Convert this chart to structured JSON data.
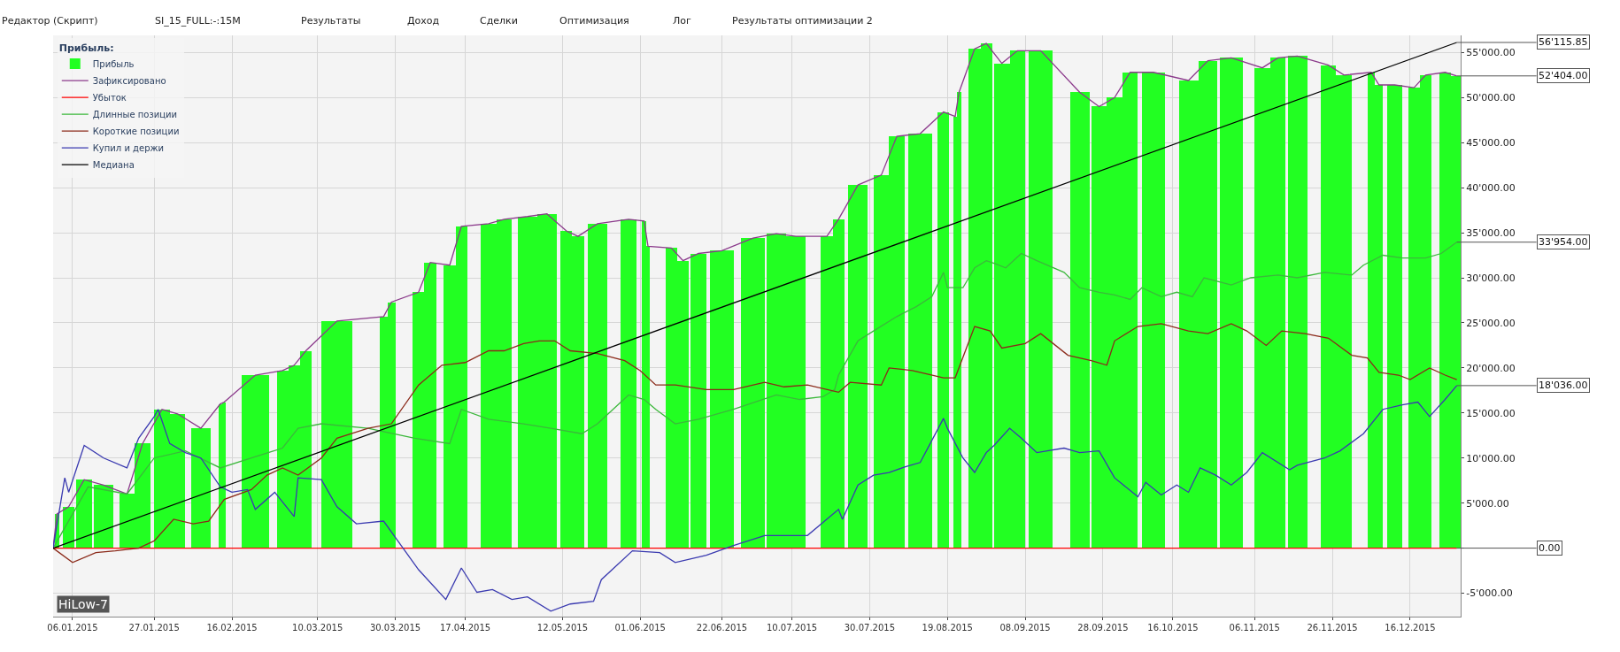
{
  "chart_data": {
    "type": "line",
    "legend_title": "Прибыль:",
    "legend": "top left",
    "grid": true,
    "x": [
      "2015-01-01",
      "2015-12-28"
    ],
    "xlim": [
      "2015-01-01",
      "2015-12-29"
    ],
    "xticks": [
      {
        "value": "2015-01-06",
        "label": "06.01.2015"
      },
      {
        "value": "2015-01-27",
        "label": "27.01.2015"
      },
      {
        "value": "2015-02-16",
        "label": "16.02.2015"
      },
      {
        "value": "2015-03-10",
        "label": "10.03.2015"
      },
      {
        "value": "2015-03-30",
        "label": "30.03.2015"
      },
      {
        "value": "2015-04-17",
        "label": "17.04.2015"
      },
      {
        "value": "2015-05-12",
        "label": "12.05.2015"
      },
      {
        "value": "2015-06-01",
        "label": "01.06.2015"
      },
      {
        "value": "2015-06-22",
        "label": "22.06.2015"
      },
      {
        "value": "2015-07-10",
        "label": "10.07.2015"
      },
      {
        "value": "2015-07-30",
        "label": "30.07.2015"
      },
      {
        "value": "2015-08-19",
        "label": "19.08.2015"
      },
      {
        "value": "2015-09-08",
        "label": "08.09.2015"
      },
      {
        "value": "2015-09-28",
        "label": "28.09.2015"
      },
      {
        "value": "2015-10-16",
        "label": "16.10.2015"
      },
      {
        "value": "2015-11-06",
        "label": "06.11.2015"
      },
      {
        "value": "2015-11-26",
        "label": "26.11.2015"
      },
      {
        "value": "2015-12-16",
        "label": "16.12.2015"
      }
    ],
    "ylim": [
      -7600,
      56900
    ],
    "yticks": [
      {
        "value": -5000,
        "label": "-5'000.00"
      },
      {
        "value": 0,
        "label": null
      },
      {
        "value": 5000,
        "label": "5'000.00"
      },
      {
        "value": 10000,
        "label": "10'000.00"
      },
      {
        "value": 15000,
        "label": "15'000.00"
      },
      {
        "value": 20000,
        "label": "20'000.00"
      },
      {
        "value": 25000,
        "label": "25'000.00"
      },
      {
        "value": 30000,
        "label": "30'000.00"
      },
      {
        "value": 35000,
        "label": "35'000.00"
      },
      {
        "value": 40000,
        "label": "40'000.00"
      },
      {
        "value": 45000,
        "label": "45'000.00"
      },
      {
        "value": 50000,
        "label": "50'000.00"
      },
      {
        "value": 55000,
        "label": "55'000.00"
      }
    ],
    "series": [
      {
        "name": "Прибыль",
        "type": "bar",
        "color": "#22ff22",
        "x": [
          "2015-01-01",
          "2015-01-02",
          "2015-01-05",
          "2015-01-09",
          "2015-01-14",
          "2015-01-20",
          "2015-01-24",
          "2015-01-29",
          "2015-02-02",
          "2015-02-08",
          "2015-02-13",
          "2015-02-14",
          "2015-02-22",
          "2015-03-01",
          "2015-03-04",
          "2015-03-07",
          "2015-03-15",
          "2015-03-27",
          "2015-03-29",
          "2015-04-05",
          "2015-04-08",
          "2015-04-13",
          "2015-04-16",
          "2015-04-23",
          "2015-04-27",
          "2015-05-03",
          "2015-05-08",
          "2015-05-13",
          "2015-05-16",
          "2015-05-21",
          "2015-05-29",
          "2015-06-02",
          "2015-06-03",
          "2015-06-09",
          "2015-06-12",
          "2015-06-16",
          "2015-06-22",
          "2015-06-30",
          "2015-07-06",
          "2015-07-11",
          "2015-07-19",
          "2015-07-22",
          "2015-07-27",
          "2015-08-02",
          "2015-08-06",
          "2015-08-12",
          "2015-08-18",
          "2015-08-21",
          "2015-08-22",
          "2015-08-26",
          "2015-08-29",
          "2015-09-02",
          "2015-09-06",
          "2015-09-12",
          "2015-09-22",
          "2015-09-27",
          "2015-10-01",
          "2015-10-05",
          "2015-10-11",
          "2015-10-20",
          "2015-10-25",
          "2015-10-31",
          "2015-11-08",
          "2015-11-12",
          "2015-11-17",
          "2015-11-25",
          "2015-11-29",
          "2015-12-06",
          "2015-12-08",
          "2015-12-12",
          "2015-12-17",
          "2015-12-20",
          "2015-12-25",
          "2015-12-28"
        ],
        "values": [
          0,
          3800,
          4600,
          7600,
          7000,
          6000,
          11600,
          15400,
          14900,
          13300,
          16000,
          16200,
          19200,
          19700,
          20300,
          21900,
          25200,
          25700,
          27300,
          28400,
          31700,
          31400,
          35700,
          36000,
          36500,
          36800,
          37100,
          35200,
          34600,
          36000,
          36500,
          36300,
          33500,
          33300,
          31900,
          32700,
          33000,
          34400,
          34900,
          34600,
          34600,
          36500,
          40300,
          41400,
          45700,
          46000,
          48400,
          47900,
          50600,
          55400,
          56000,
          53800,
          55200,
          55200,
          50600,
          49000,
          50000,
          52800,
          52800,
          51900,
          54100,
          54400,
          53300,
          54400,
          54600,
          53600,
          52500,
          52800,
          51400,
          51400,
          51100,
          52500,
          52800,
          52404
        ]
      },
      {
        "name": "Зафиксировано",
        "color": "#8b3a8b",
        "x": [
          "2015-01-01",
          "2015-01-02",
          "2015-01-05",
          "2015-01-09",
          "2015-01-14",
          "2015-01-20",
          "2015-01-24",
          "2015-01-29",
          "2015-02-02",
          "2015-02-08",
          "2015-02-13",
          "2015-02-14",
          "2015-02-22",
          "2015-03-01",
          "2015-03-04",
          "2015-03-07",
          "2015-03-15",
          "2015-03-27",
          "2015-03-29",
          "2015-04-05",
          "2015-04-08",
          "2015-04-13",
          "2015-04-16",
          "2015-04-23",
          "2015-04-27",
          "2015-05-03",
          "2015-05-08",
          "2015-05-13",
          "2015-05-16",
          "2015-05-21",
          "2015-05-29",
          "2015-06-02",
          "2015-06-03",
          "2015-06-09",
          "2015-06-12",
          "2015-06-16",
          "2015-06-22",
          "2015-06-30",
          "2015-07-06",
          "2015-07-11",
          "2015-07-19",
          "2015-07-22",
          "2015-07-27",
          "2015-08-02",
          "2015-08-06",
          "2015-08-12",
          "2015-08-18",
          "2015-08-21",
          "2015-08-22",
          "2015-08-26",
          "2015-08-29",
          "2015-09-02",
          "2015-09-06",
          "2015-09-12",
          "2015-09-22",
          "2015-09-27",
          "2015-10-01",
          "2015-10-05",
          "2015-10-11",
          "2015-10-20",
          "2015-10-25",
          "2015-10-31",
          "2015-11-08",
          "2015-11-12",
          "2015-11-17",
          "2015-11-25",
          "2015-11-29",
          "2015-12-06",
          "2015-12-08",
          "2015-12-12",
          "2015-12-17",
          "2015-12-20",
          "2015-12-25",
          "2015-12-28"
        ],
        "values": [
          0,
          3800,
          4600,
          7600,
          7000,
          6000,
          11600,
          15400,
          14900,
          13300,
          16000,
          16200,
          19200,
          19700,
          20300,
          21900,
          25200,
          25700,
          27300,
          28400,
          31700,
          31400,
          35700,
          36000,
          36500,
          36800,
          37100,
          35200,
          34600,
          36000,
          36500,
          36300,
          33500,
          33300,
          31900,
          32700,
          33000,
          34400,
          34900,
          34600,
          34600,
          36500,
          40300,
          41400,
          45700,
          46000,
          48400,
          47900,
          50600,
          55400,
          56000,
          53800,
          55200,
          55200,
          50600,
          49000,
          50000,
          52800,
          52800,
          51900,
          54100,
          54400,
          53300,
          54400,
          54600,
          53600,
          52500,
          52800,
          51400,
          51400,
          51100,
          52500,
          52800,
          52404
        ]
      },
      {
        "name": "Убыток",
        "color": "#ff0000",
        "values": [
          0,
          0
        ]
      },
      {
        "name": "Длинные позиции",
        "color": "#3cb83c",
        "x": [
          "2015-01-01",
          "2015-01-10",
          "2015-01-20",
          "2015-01-27",
          "2015-02-04",
          "2015-02-13",
          "2015-02-21",
          "2015-03-01",
          "2015-03-05",
          "2015-03-11",
          "2015-03-23",
          "2015-04-04",
          "2015-04-13",
          "2015-04-16",
          "2015-04-23",
          "2015-05-02",
          "2015-05-09",
          "2015-05-17",
          "2015-05-21",
          "2015-05-29",
          "2015-06-02",
          "2015-06-05",
          "2015-06-10",
          "2015-06-16",
          "2015-06-25",
          "2015-07-06",
          "2015-07-12",
          "2015-07-18",
          "2015-07-21",
          "2015-07-22",
          "2015-07-27",
          "2015-07-31",
          "2015-08-06",
          "2015-08-11",
          "2015-08-15",
          "2015-08-18",
          "2015-08-19",
          "2015-08-23",
          "2015-08-26",
          "2015-08-29",
          "2015-08-31",
          "2015-09-03",
          "2015-09-07",
          "2015-09-11",
          "2015-09-18",
          "2015-09-22",
          "2015-09-27",
          "2015-10-01",
          "2015-10-05",
          "2015-10-08",
          "2015-10-13",
          "2015-10-17",
          "2015-10-21",
          "2015-10-24",
          "2015-10-31",
          "2015-11-05",
          "2015-11-12",
          "2015-11-17",
          "2015-11-24",
          "2015-12-01",
          "2015-12-04",
          "2015-12-09",
          "2015-12-14",
          "2015-12-20",
          "2015-12-24",
          "2015-12-28"
        ],
        "values": [
          0,
          6800,
          6000,
          10000,
          10800,
          8900,
          10000,
          11100,
          13300,
          13800,
          13300,
          12200,
          11600,
          15400,
          14300,
          13800,
          13300,
          12700,
          13800,
          17000,
          16500,
          15400,
          13800,
          14300,
          15400,
          17000,
          16500,
          16800,
          17600,
          19200,
          23000,
          24100,
          25700,
          26800,
          27900,
          30600,
          28900,
          28900,
          31100,
          31900,
          31600,
          31100,
          32700,
          31900,
          30600,
          28900,
          28400,
          28100,
          27600,
          28900,
          27900,
          28400,
          27900,
          30000,
          29200,
          30000,
          30300,
          30000,
          30600,
          30300,
          31400,
          32500,
          32200,
          32200,
          32700,
          33954
        ]
      },
      {
        "name": "Короткие позиции",
        "color": "#8b2a1a",
        "x": [
          "2015-01-01",
          "2015-01-06",
          "2015-01-12",
          "2015-01-17",
          "2015-01-23",
          "2015-01-27",
          "2015-02-01",
          "2015-02-06",
          "2015-02-10",
          "2015-02-14",
          "2015-02-21",
          "2015-02-25",
          "2015-03-01",
          "2015-03-05",
          "2015-03-11",
          "2015-03-15",
          "2015-03-23",
          "2015-03-29",
          "2015-04-05",
          "2015-04-11",
          "2015-04-17",
          "2015-04-23",
          "2015-04-27",
          "2015-05-02",
          "2015-05-06",
          "2015-05-10",
          "2015-05-14",
          "2015-05-21",
          "2015-05-28",
          "2015-06-01",
          "2015-06-05",
          "2015-06-10",
          "2015-06-18",
          "2015-06-25",
          "2015-07-03",
          "2015-07-08",
          "2015-07-14",
          "2015-07-22",
          "2015-07-25",
          "2015-08-02",
          "2015-08-04",
          "2015-08-10",
          "2015-08-18",
          "2015-08-21",
          "2015-08-26",
          "2015-08-30",
          "2015-09-02",
          "2015-09-08",
          "2015-09-12",
          "2015-09-19",
          "2015-09-25",
          "2015-09-29",
          "2015-10-01",
          "2015-10-07",
          "2015-10-13",
          "2015-10-20",
          "2015-10-25",
          "2015-10-31",
          "2015-11-04",
          "2015-11-09",
          "2015-11-13",
          "2015-11-19",
          "2015-11-25",
          "2015-12-01",
          "2015-12-05",
          "2015-12-08",
          "2015-12-13",
          "2015-12-16",
          "2015-12-21",
          "2015-12-25",
          "2015-12-28"
        ],
        "values": [
          0,
          -1600,
          -500,
          -300,
          0,
          800,
          3200,
          2700,
          3000,
          5400,
          6500,
          8100,
          8900,
          8100,
          10000,
          12200,
          13300,
          13800,
          18100,
          20300,
          20600,
          21900,
          21900,
          22700,
          23000,
          23000,
          21900,
          21600,
          20800,
          19700,
          18100,
          18100,
          17600,
          17600,
          18400,
          17900,
          18100,
          17300,
          18400,
          18100,
          20000,
          19700,
          18900,
          18900,
          24600,
          24100,
          22200,
          22700,
          23800,
          21400,
          20800,
          20300,
          23000,
          24600,
          24900,
          24100,
          23800,
          24900,
          24100,
          22500,
          24100,
          23800,
          23300,
          21400,
          21100,
          19500,
          19200,
          18700,
          20000,
          19200,
          18700
        ]
      },
      {
        "name": "Купил и держи",
        "color": "#3a3ab0",
        "x": [
          "2015-01-01",
          "2015-01-04",
          "2015-01-05",
          "2015-01-09",
          "2015-01-14",
          "2015-01-20",
          "2015-01-23",
          "2015-01-27",
          "2015-01-28",
          "2015-01-31",
          "2015-02-04",
          "2015-02-08",
          "2015-02-13",
          "2015-02-16",
          "2015-02-20",
          "2015-02-22",
          "2015-02-27",
          "2015-03-04",
          "2015-03-05",
          "2015-03-11",
          "2015-03-15",
          "2015-03-20",
          "2015-03-27",
          "2015-04-01",
          "2015-04-05",
          "2015-04-12",
          "2015-04-16",
          "2015-04-20",
          "2015-04-24",
          "2015-04-29",
          "2015-05-03",
          "2015-05-09",
          "2015-05-14",
          "2015-05-20",
          "2015-05-22",
          "2015-05-30",
          "2015-06-06",
          "2015-06-10",
          "2015-06-18",
          "2015-06-25",
          "2015-07-03",
          "2015-07-10",
          "2015-07-14",
          "2015-07-22",
          "2015-07-23",
          "2015-07-27",
          "2015-07-31",
          "2015-08-04",
          "2015-08-08",
          "2015-08-12",
          "2015-08-18",
          "2015-08-19",
          "2015-08-23",
          "2015-08-26",
          "2015-08-29",
          "2015-08-31",
          "2015-09-04",
          "2015-09-07",
          "2015-09-11",
          "2015-09-18",
          "2015-09-22",
          "2015-09-27",
          "2015-10-01",
          "2015-10-07",
          "2015-10-09",
          "2015-10-13",
          "2015-10-17",
          "2015-10-20",
          "2015-10-23",
          "2015-10-27",
          "2015-10-31",
          "2015-11-04",
          "2015-11-08",
          "2015-11-15",
          "2015-11-17",
          "2015-11-24",
          "2015-11-28",
          "2015-12-04",
          "2015-12-09",
          "2015-12-14",
          "2015-12-18",
          "2015-12-21",
          "2015-12-25",
          "2015-12-28"
        ],
        "values": [
          0,
          7800,
          6200,
          11400,
          10000,
          8900,
          12200,
          14600,
          15400,
          11600,
          10600,
          10000,
          6800,
          6200,
          6500,
          4300,
          6200,
          3500,
          7800,
          7600,
          4600,
          2700,
          3000,
          0,
          -2400,
          -5700,
          -2200,
          -4900,
          -4600,
          -5700,
          -5400,
          -7000,
          -6200,
          -5900,
          -3500,
          -300,
          -500,
          -1600,
          -800,
          300,
          1400,
          1400,
          1400,
          4300,
          3200,
          7000,
          8100,
          8400,
          9000,
          9500,
          14400,
          13300,
          10000,
          8400,
          10600,
          11400,
          13300,
          12200,
          10600,
          11100,
          10600,
          10800,
          7800,
          5700,
          7300,
          5900,
          7000,
          6200,
          8900,
          8100,
          7000,
          8400,
          10600,
          8700,
          9200,
          10000,
          10800,
          12700,
          15400,
          15900,
          16200,
          14600,
          16500,
          18036
        ]
      },
      {
        "name": "Медиана",
        "color": "#000000",
        "values": [
          0,
          56115.85
        ]
      }
    ],
    "annotations": [
      "Редактор (Скрипт)",
      "SI_15_FULL:-:15M",
      "Результаты",
      "Доход",
      "Сделки",
      "Оптимизация",
      "Лог",
      "Результаты оптимизации 2",
      "HiLow-7",
      {
        "text": "56'115.85",
        "x": "2015-12-28",
        "y": 56115.85
      },
      {
        "text": "52'404.00",
        "x": "2015-12-28",
        "y": 52404
      },
      {
        "text": "33'954.00",
        "x": "2015-12-28",
        "y": 33954
      },
      {
        "text": "18'036.00",
        "x": "2015-12-28",
        "y": 18036
      },
      {
        "text": "0.00",
        "x": "2015-12-28",
        "y": 0
      }
    ]
  }
}
